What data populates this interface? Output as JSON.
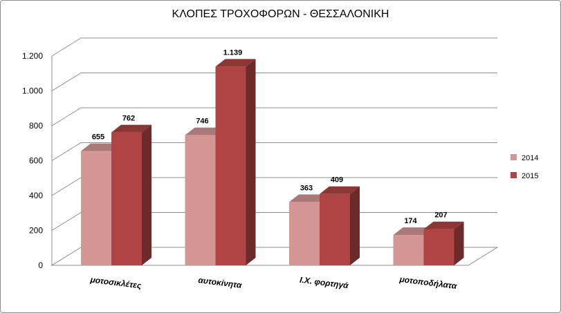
{
  "chart_data": {
    "type": "bar",
    "title": "ΚΛΟΠΕΣ ΤΡΟΧΟΦΟΡΩΝ - ΘΕΣΣΑΛΟΝΙΚΗ",
    "categories": [
      "μοτοσικλέτες",
      "αυτοκίνητα",
      "Ι.Χ. φορτηγά",
      "μοτοποδήλατα"
    ],
    "series": [
      {
        "name": "2014",
        "values": [
          655,
          746,
          363,
          174
        ],
        "labels": [
          "655",
          "746",
          "363",
          "174"
        ],
        "color": "#d49695"
      },
      {
        "name": "2015",
        "values": [
          762,
          1139,
          409,
          207
        ],
        "labels": [
          "762",
          "1.139",
          "409",
          "207"
        ],
        "color": "#b04444"
      }
    ],
    "ylim": [
      0,
      1200
    ],
    "yticks": [
      0,
      200,
      400,
      600,
      800,
      1000,
      1200
    ],
    "ytick_labels": [
      "0",
      "200",
      "400",
      "600",
      "800",
      "1.000",
      "1.200"
    ],
    "grid": true,
    "legend": "right",
    "style": "3d-column"
  }
}
